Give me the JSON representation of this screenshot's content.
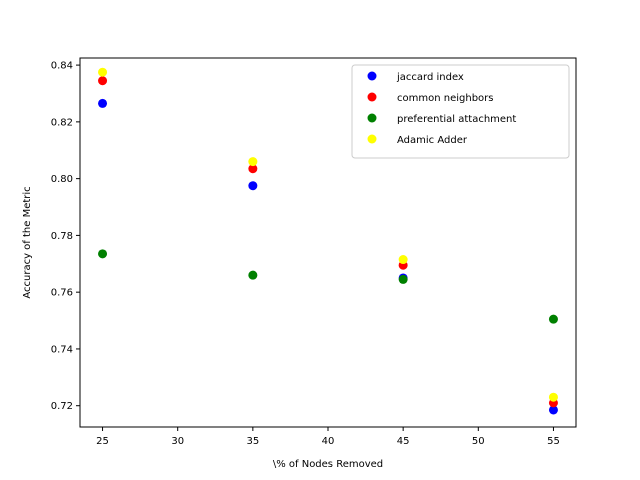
{
  "chart_data": {
    "type": "scatter",
    "xlabel": "\\% of Nodes Removed",
    "ylabel": "Accuracy of the Metric",
    "xlim": [
      23.5,
      56.5
    ],
    "ylim": [
      0.7125,
      0.8425
    ],
    "xticks": [
      25,
      30,
      35,
      40,
      45,
      50,
      55
    ],
    "yticks": [
      0.72,
      0.74,
      0.76,
      0.78,
      0.8,
      0.82,
      0.84
    ],
    "ytick_labels": [
      "0.72",
      "0.74",
      "0.76",
      "0.78",
      "0.80",
      "0.82",
      "0.84"
    ],
    "grid": false,
    "legend_position": "top-right",
    "x": [
      25,
      35,
      45,
      55
    ],
    "series": [
      {
        "name": "jaccard index",
        "color": "#0000ff",
        "values": [
          0.8265,
          0.7975,
          0.765,
          0.7185
        ]
      },
      {
        "name": "common neighbors",
        "color": "#ff0000",
        "values": [
          0.8345,
          0.8035,
          0.7695,
          0.721
        ]
      },
      {
        "name": "preferential attachment",
        "color": "#008000",
        "values": [
          0.7735,
          0.766,
          0.7645,
          0.7505
        ]
      },
      {
        "name": "Adamic Adder",
        "color": "#ffff00",
        "values": [
          0.8375,
          0.806,
          0.7715,
          0.723
        ]
      }
    ]
  }
}
